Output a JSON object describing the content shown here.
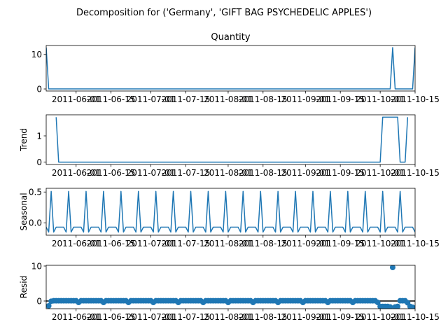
{
  "figure": {
    "suptitle": "Decomposition for ('Germany', 'GIFT BAG PSYCHEDELIC APPLES')"
  },
  "colors": {
    "line": "#1f77b4",
    "axis": "#000000",
    "zero_line": "#000000"
  },
  "x_tick_labels": [
    "2011-06-01",
    "2011-06-15",
    "2011-07-01",
    "2011-07-15",
    "2011-08-01",
    "2011-08-15",
    "2011-09-01",
    "2011-09-15",
    "2011-10-01",
    "2011-10-15"
  ],
  "chart_data": [
    {
      "type": "line",
      "title": "Quantity",
      "ylabel": "",
      "yticks": [
        0,
        10
      ],
      "ylim": [
        -0.6,
        12.6
      ],
      "x": [
        "2011-05-20",
        "2011-05-21",
        "2011-10-05",
        "2011-10-06",
        "2011-10-07",
        "2011-10-14",
        "2011-10-15"
      ],
      "values": [
        12,
        0,
        0,
        12,
        0,
        0,
        12
      ]
    },
    {
      "type": "line",
      "title": "",
      "ylabel": "Trend",
      "yticks": [
        0,
        1
      ],
      "ylim": [
        -0.09,
        1.8
      ],
      "x": [
        "2011-05-24",
        "2011-05-25",
        "2011-10-01",
        "2011-10-02",
        "2011-10-08",
        "2011-10-09",
        "2011-10-11",
        "2011-10-12"
      ],
      "values": [
        1.71,
        0,
        0,
        1.71,
        1.71,
        0,
        0,
        1.71
      ]
    },
    {
      "type": "line",
      "title": "",
      "ylabel": "Seasonal",
      "yticks": [
        0.0,
        0.5
      ],
      "ylim": [
        -0.2,
        0.56
      ],
      "period": 7,
      "pattern": [
        -0.07,
        -0.07,
        -0.07,
        -0.07,
        -0.15,
        0.51,
        -0.15
      ],
      "x_start": "2011-05-17",
      "x_end": "2011-10-15"
    },
    {
      "type": "scatter",
      "title": "",
      "ylabel": "Resid",
      "yticks": [
        0,
        10
      ],
      "ylim": [
        -2.2,
        10.2
      ],
      "zero_line": true,
      "x": [
        "2011-05-21",
        "2011-05-22",
        "2011-05-23",
        "2011-05-24",
        "2011-05-25",
        "2011-05-26",
        "2011-05-27",
        "2011-05-28",
        "2011-05-29",
        "2011-05-30",
        "2011-05-31",
        "2011-06-01",
        "2011-06-02",
        "2011-06-03",
        "2011-06-04",
        "2011-06-05",
        "2011-06-06",
        "2011-06-07",
        "2011-06-08",
        "2011-06-09",
        "2011-06-10",
        "2011-06-11",
        "2011-06-12",
        "2011-06-13",
        "2011-06-14",
        "2011-06-15",
        "2011-06-16",
        "2011-06-17",
        "2011-06-18",
        "2011-06-19",
        "2011-06-20",
        "2011-06-21",
        "2011-06-22",
        "2011-06-23",
        "2011-06-24",
        "2011-06-25",
        "2011-06-26",
        "2011-06-27",
        "2011-06-28",
        "2011-06-29",
        "2011-06-30",
        "2011-07-01",
        "2011-07-02",
        "2011-07-03",
        "2011-07-04",
        "2011-07-05",
        "2011-07-06",
        "2011-07-07",
        "2011-07-08",
        "2011-07-09",
        "2011-07-10",
        "2011-07-11",
        "2011-07-12",
        "2011-07-13",
        "2011-07-14",
        "2011-07-15",
        "2011-07-16",
        "2011-07-17",
        "2011-07-18",
        "2011-07-19",
        "2011-07-20",
        "2011-07-21",
        "2011-07-22",
        "2011-07-23",
        "2011-07-24",
        "2011-07-25",
        "2011-07-26",
        "2011-07-27",
        "2011-07-28",
        "2011-07-29",
        "2011-07-30",
        "2011-07-31",
        "2011-08-01",
        "2011-08-02",
        "2011-08-03",
        "2011-08-04",
        "2011-08-05",
        "2011-08-06",
        "2011-08-07",
        "2011-08-08",
        "2011-08-09",
        "2011-08-10",
        "2011-08-11",
        "2011-08-12",
        "2011-08-13",
        "2011-08-14",
        "2011-08-15",
        "2011-08-16",
        "2011-08-17",
        "2011-08-18",
        "2011-08-19",
        "2011-08-20",
        "2011-08-21",
        "2011-08-22",
        "2011-08-23",
        "2011-08-24",
        "2011-08-25",
        "2011-08-26",
        "2011-08-27",
        "2011-08-28",
        "2011-08-29",
        "2011-08-30",
        "2011-08-31",
        "2011-09-01",
        "2011-09-02",
        "2011-09-03",
        "2011-09-04",
        "2011-09-05",
        "2011-09-06",
        "2011-09-07",
        "2011-09-08",
        "2011-09-09",
        "2011-09-10",
        "2011-09-11",
        "2011-09-12",
        "2011-09-13",
        "2011-09-14",
        "2011-09-15",
        "2011-09-16",
        "2011-09-17",
        "2011-09-18",
        "2011-09-19",
        "2011-09-20",
        "2011-09-21",
        "2011-09-22",
        "2011-09-23",
        "2011-09-24",
        "2011-09-25",
        "2011-09-26",
        "2011-09-27",
        "2011-09-28",
        "2011-09-29",
        "2011-09-30",
        "2011-10-01",
        "2011-10-02",
        "2011-10-03",
        "2011-10-04",
        "2011-10-05",
        "2011-10-06",
        "2011-10-07",
        "2011-10-08",
        "2011-10-09",
        "2011-10-10",
        "2011-10-11",
        "2011-10-12",
        "2011-10-13",
        "2011-10-14"
      ],
      "values": [
        -1.4,
        -0.07,
        0.07,
        0.07,
        0.07,
        0.07,
        0.07,
        0.07,
        0.07,
        0.07,
        0.07,
        0.07,
        -0.4,
        0.07,
        0.07,
        0.07,
        0.07,
        0.07,
        0.07,
        0.07,
        0.07,
        0.07,
        -0.4,
        0.07,
        0.07,
        0.07,
        0.07,
        0.07,
        0.07,
        0.07,
        0.07,
        0.07,
        -0.4,
        0.07,
        0.07,
        0.07,
        0.07,
        0.07,
        0.07,
        0.07,
        0.07,
        0.07,
        -0.4,
        0.07,
        0.07,
        0.07,
        0.07,
        0.07,
        0.07,
        0.07,
        0.07,
        0.07,
        -0.4,
        0.07,
        0.07,
        0.07,
        0.07,
        0.07,
        0.07,
        0.07,
        0.07,
        0.07,
        -0.4,
        0.07,
        0.07,
        0.07,
        0.07,
        0.07,
        0.07,
        0.07,
        0.07,
        0.07,
        -0.4,
        0.07,
        0.07,
        0.07,
        0.07,
        0.07,
        0.07,
        0.07,
        0.07,
        0.07,
        -0.4,
        0.07,
        0.07,
        0.07,
        0.07,
        0.07,
        0.07,
        0.07,
        0.07,
        0.07,
        -0.4,
        0.07,
        0.07,
        0.07,
        0.07,
        0.07,
        0.07,
        0.07,
        0.07,
        0.07,
        -0.4,
        0.07,
        0.07,
        0.07,
        0.07,
        0.07,
        0.07,
        0.07,
        0.07,
        0.07,
        -0.4,
        0.07,
        0.07,
        0.07,
        0.07,
        0.07,
        0.07,
        0.07,
        0.07,
        0.07,
        -0.4,
        0.07,
        0.07,
        0.07,
        0.07,
        0.07,
        0.07,
        0.07,
        0.07,
        0.07,
        -0.4,
        -1.55,
        -1.55,
        -1.55,
        -1.55,
        -1.7,
        9.6,
        -1.7,
        -1.55,
        0.07,
        0.07,
        0.07,
        -0.5,
        -1.55,
        -1.8
      ]
    }
  ]
}
